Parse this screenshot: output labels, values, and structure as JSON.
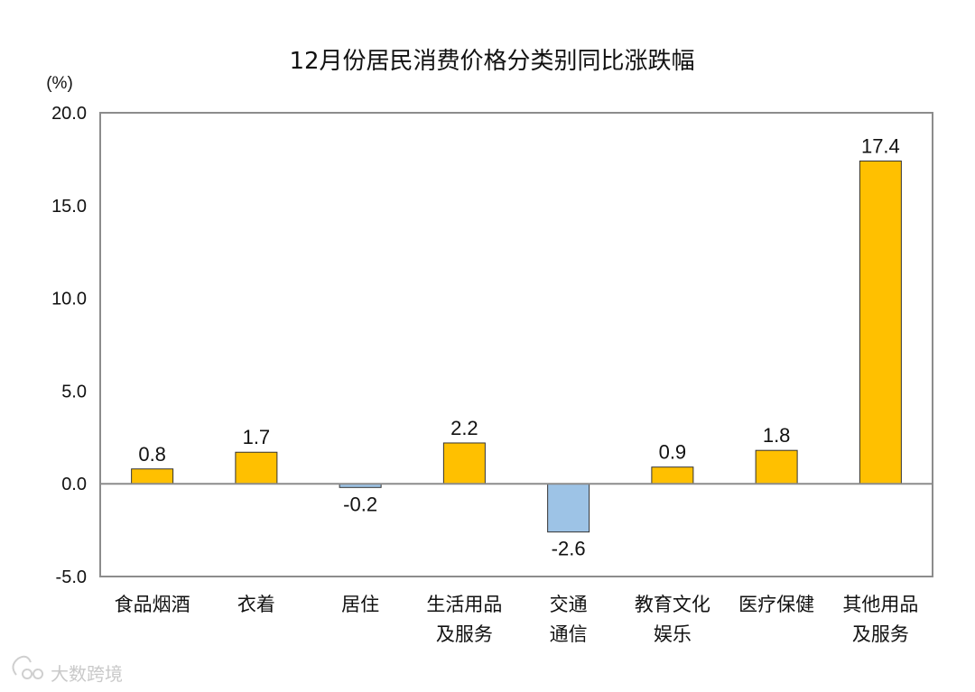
{
  "chart_data": {
    "type": "bar",
    "title": "12月份居民消费价格分类别同比涨跌幅",
    "ylabel": "(%)",
    "xlabel": "",
    "ylim": [
      -5.0,
      20.0
    ],
    "yticks": [
      "20.0",
      "15.0",
      "10.0",
      "5.0",
      "0.0",
      "-5.0"
    ],
    "ytick_values": [
      20,
      15,
      10,
      5,
      0,
      -5
    ],
    "categories": [
      [
        "食品烟酒"
      ],
      [
        "衣着"
      ],
      [
        "居住"
      ],
      [
        "生活用品",
        "及服务"
      ],
      [
        "交通",
        "通信"
      ],
      [
        "教育文化",
        "娱乐"
      ],
      [
        "医疗保健"
      ],
      [
        "其他用品",
        "及服务"
      ]
    ],
    "values": [
      0.8,
      1.7,
      -0.2,
      2.2,
      -2.6,
      0.9,
      1.8,
      17.4
    ],
    "value_labels": [
      "0.8",
      "1.7",
      "-0.2",
      "2.2",
      "-2.6",
      "0.9",
      "1.8",
      "17.4"
    ],
    "positive_color": "#FFC000",
    "negative_color": "#9DC3E6",
    "bar_stroke": "#333333",
    "frame_color": "#8c8c8c",
    "grid": false,
    "legend": "none"
  },
  "watermark": {
    "text": "大数跨境"
  }
}
